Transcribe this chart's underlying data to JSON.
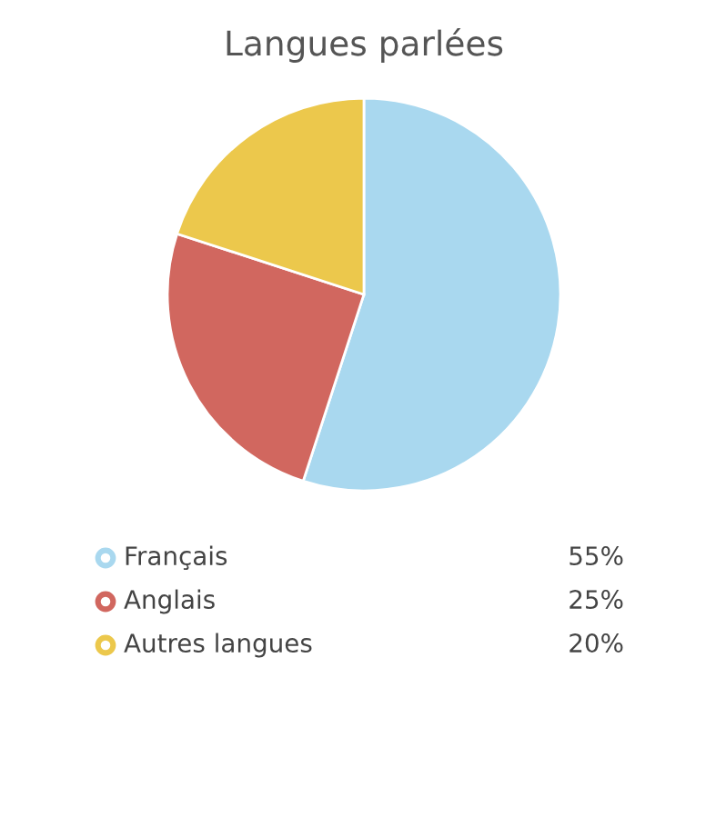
{
  "chart_data": {
    "type": "pie",
    "title": "Langues parlées",
    "categories": [
      "Français",
      "Anglais",
      "Autres langues"
    ],
    "values": [
      55,
      25,
      20
    ],
    "colors": [
      "#a9d8ef",
      "#d1675f",
      "#ecc84c"
    ],
    "value_labels": [
      "55%",
      "25%",
      "20%"
    ],
    "legend": "bottom"
  }
}
